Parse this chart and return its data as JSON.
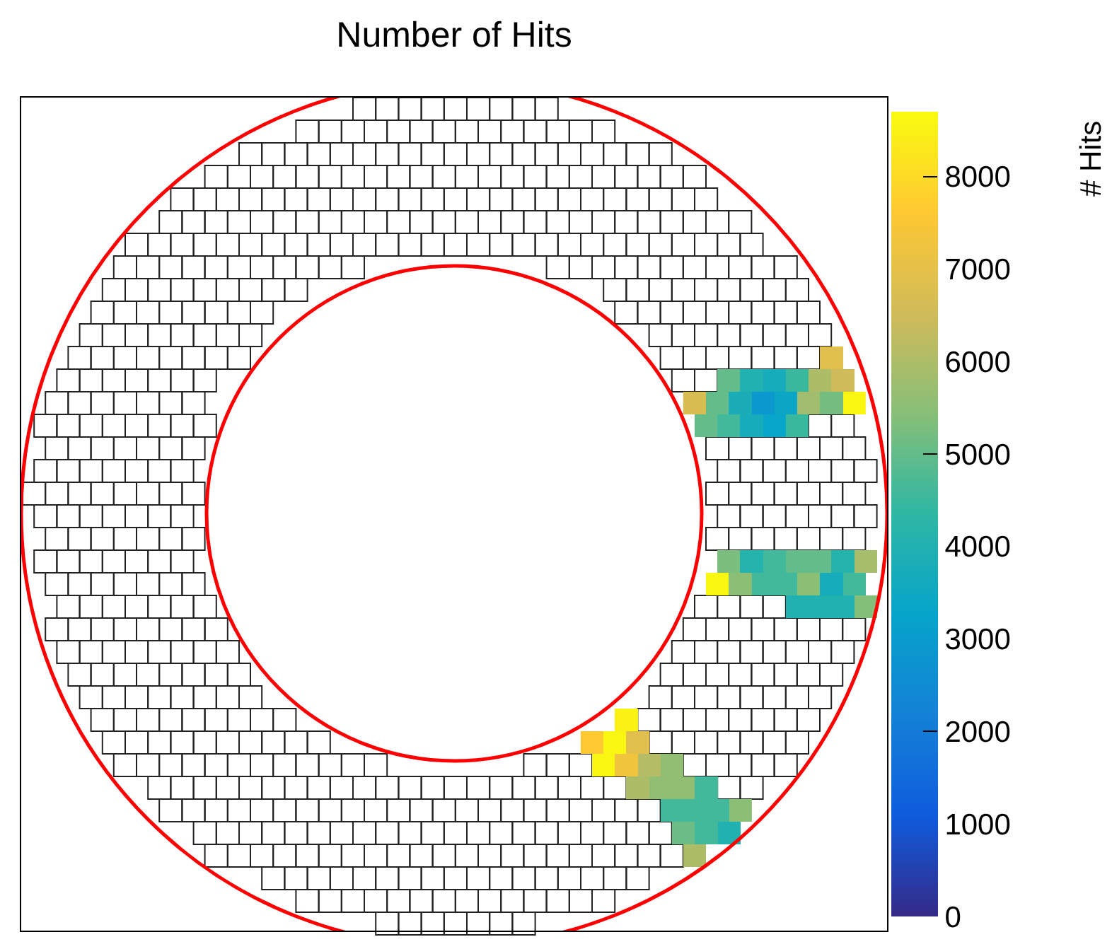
{
  "chart_data": [
    {
      "type": "heatmap",
      "title": "Number of Hits",
      "clabel": "# Hits",
      "tick_labels": false,
      "clim": [
        0,
        8700
      ],
      "cticks": [
        0,
        3000,
        6000
      ],
      "categories": [
        null,
        null,
        null,
        null,
        null,
        null,
        null,
        null,
        null,
        null,
        null,
        null,
        null,
        null,
        null,
        null
      ],
      "y_categories": [
        null,
        null,
        null,
        null
      ],
      "cells": [
        [
          null,
          null,
          null,
          null,
          null,
          null,
          null,
          null,
          null,
          null,
          null,
          null,
          6900,
          6900,
          null,
          null
        ],
        [
          null,
          null,
          null,
          5000,
          5000,
          4000,
          4000,
          3700,
          3700,
          4500,
          4500,
          6000,
          6000,
          6500,
          6500,
          null
        ],
        [
          6700,
          6700,
          5000,
          5000,
          3800,
          3800,
          2900,
          2900,
          3400,
          3400,
          5800,
          5800,
          5200,
          5200,
          8600,
          8600
        ],
        [
          null,
          5000,
          5000,
          4600,
          4600,
          3700,
          3700,
          3300,
          3300,
          4500,
          4500,
          null,
          null,
          null,
          null,
          null
        ]
      ]
    },
    {
      "type": "heatmap",
      "tick_labels": false,
      "clim": [
        0,
        8700
      ],
      "cticks": [
        1000,
        4000,
        7000
      ],
      "categories": [
        null,
        null,
        null,
        null,
        null,
        null,
        null,
        null,
        null,
        null,
        null,
        null,
        null,
        null,
        null
      ],
      "y_categories": [
        null,
        null,
        null
      ],
      "cells": [
        [
          null,
          5300,
          5300,
          4100,
          4100,
          4600,
          4600,
          5000,
          5000,
          5000,
          5000,
          4100,
          4100,
          5900,
          5900
        ],
        [
          8600,
          8600,
          5500,
          5500,
          4600,
          4600,
          4600,
          4600,
          5500,
          5500,
          3700,
          3700,
          4600,
          4600,
          null
        ],
        [
          null,
          null,
          null,
          null,
          null,
          null,
          null,
          4000,
          4000,
          4000,
          4000,
          4000,
          4000,
          5400,
          5400
        ]
      ]
    },
    {
      "type": "heatmap",
      "tick_labels": false,
      "clim": [
        0,
        8700
      ],
      "cticks": [
        2000,
        5000,
        8000
      ],
      "categories": [
        null,
        null,
        null,
        null,
        null,
        null,
        null,
        null,
        null,
        null,
        null,
        null,
        null,
        null,
        null
      ],
      "y_categories": [
        null,
        null,
        null,
        null,
        null,
        null,
        null
      ],
      "cells": [
        [
          null,
          null,
          null,
          8500,
          8500,
          null,
          null,
          null,
          null,
          null,
          null,
          null,
          null,
          null,
          null
        ],
        [
          7600,
          7600,
          8600,
          8600,
          6900,
          6900,
          null,
          null,
          null,
          null,
          null,
          null,
          null,
          null,
          null
        ],
        [
          null,
          8600,
          8600,
          7300,
          7300,
          6100,
          6100,
          5600,
          5600,
          null,
          null,
          null,
          null,
          null,
          null
        ],
        [
          null,
          null,
          null,
          null,
          6000,
          6000,
          5600,
          5600,
          5600,
          5600,
          4600,
          4600,
          null,
          null,
          null
        ],
        [
          null,
          null,
          null,
          null,
          null,
          null,
          null,
          4600,
          4600,
          4600,
          4600,
          4600,
          4600,
          5500,
          5500
        ],
        [
          null,
          null,
          null,
          null,
          null,
          null,
          null,
          null,
          5100,
          5100,
          4600,
          4600,
          4000,
          4000,
          null
        ],
        [
          null,
          null,
          null,
          null,
          null,
          null,
          null,
          null,
          null,
          6000,
          6000,
          null,
          null,
          null,
          null
        ]
      ]
    }
  ]
}
